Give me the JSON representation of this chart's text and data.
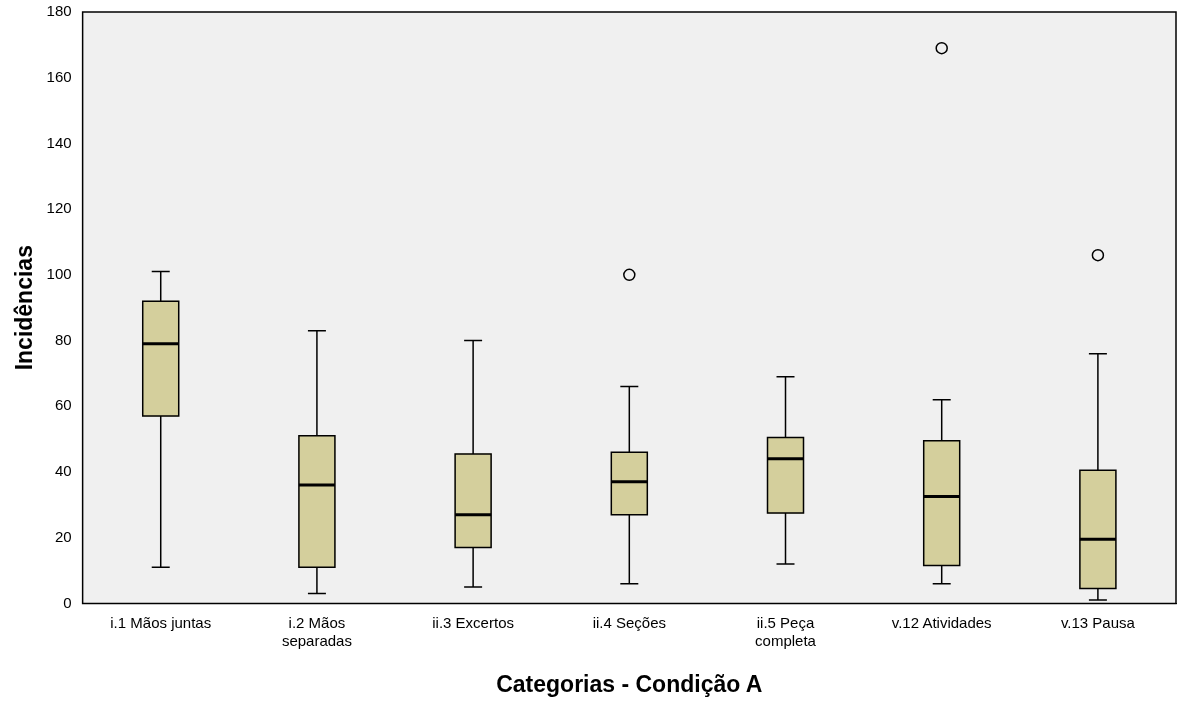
{
  "chart_data": {
    "type": "box",
    "xlabel": "Categorias - Condição A",
    "ylabel": "Incidências",
    "categories": [
      "i.1 Mãos juntas",
      "i.2 Mãos separadas",
      "ii.3 Excertos",
      "ii.4 Seções",
      "ii.5 Peça completa",
      "v.12 Atividades",
      "v.13 Pausa"
    ],
    "color": "#d4cf9c",
    "boxes": [
      {
        "low": 11,
        "q1": 57,
        "median": 79,
        "q3": 92,
        "high": 101
      },
      {
        "low": 3,
        "q1": 11,
        "median": 36,
        "q3": 51,
        "high": 83
      },
      {
        "low": 5,
        "q1": 17,
        "median": 27,
        "q3": 45.5,
        "high": 80
      },
      {
        "low": 6,
        "q1": 27,
        "median": 37,
        "q3": 46,
        "high": 66,
        "outliers": [
          100
        ]
      },
      {
        "low": 12,
        "q1": 27.5,
        "median": 44,
        "q3": 50.5,
        "high": 69
      },
      {
        "low": 6,
        "q1": 11.5,
        "median": 32.5,
        "q3": 49.5,
        "high": 62,
        "outliers": [
          169
        ]
      },
      {
        "low": 1,
        "q1": 4.5,
        "median": 19.5,
        "q3": 40.5,
        "high": 76,
        "outliers": [
          106
        ]
      }
    ],
    "ylim": [
      0,
      180
    ],
    "yticks": [
      0,
      20,
      40,
      60,
      80,
      100,
      120,
      140,
      160,
      180
    ],
    "grid": false,
    "legend": false
  }
}
